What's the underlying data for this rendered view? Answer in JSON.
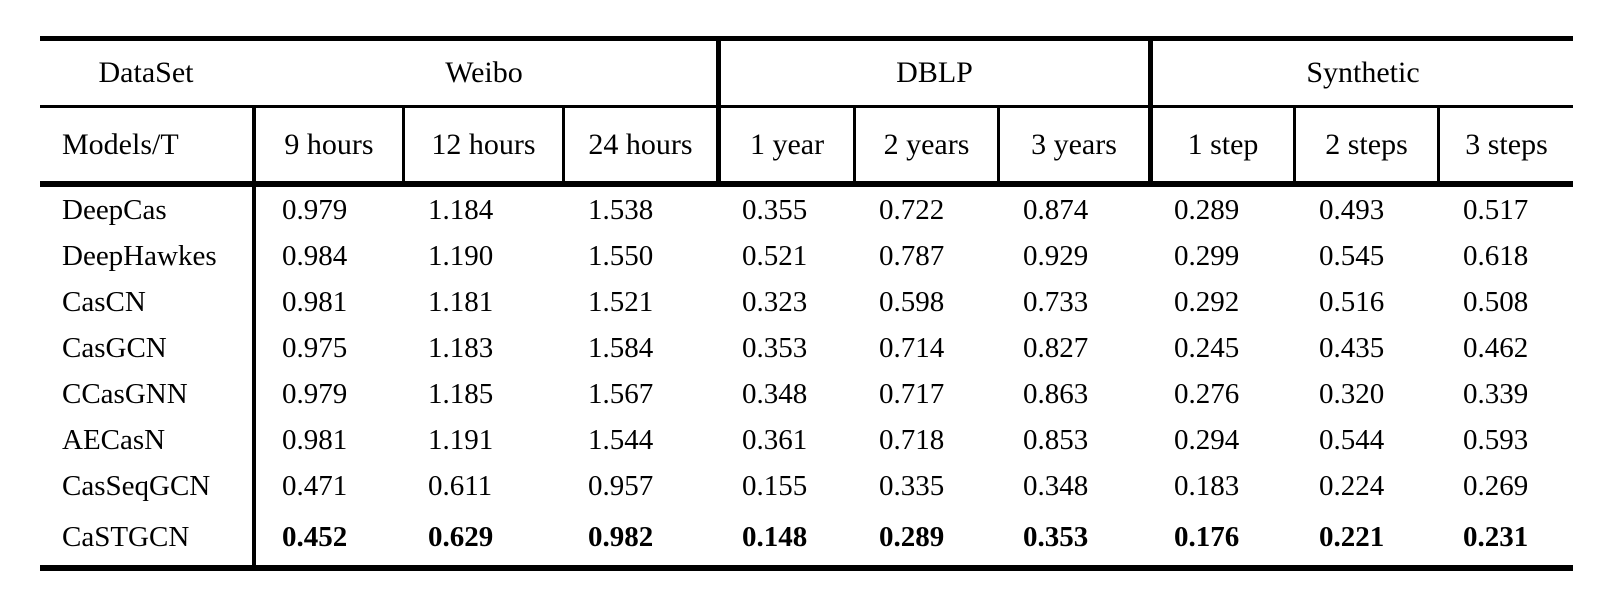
{
  "page": {
    "background": "#ffffff",
    "ink_color": "#000000"
  },
  "table": {
    "header_row1": [
      {
        "label": "DataSet",
        "span": 1
      },
      {
        "label": "Weibo",
        "span": 3
      },
      {
        "label": "DBLP",
        "span": 3
      },
      {
        "label": "Synthetic",
        "span": 3
      }
    ],
    "header_row2": [
      "Models/T",
      "9 hours",
      "12 hours",
      "24 hours",
      "1 year",
      "2 years",
      "3 years",
      "1 step",
      "2 steps",
      "3 steps"
    ],
    "rows": [
      {
        "model": "DeepCas",
        "values": [
          "0.979",
          "1.184",
          "1.538",
          "0.355",
          "0.722",
          "0.874",
          "0.289",
          "0.493",
          "0.517"
        ],
        "bold": false
      },
      {
        "model": "DeepHawkes",
        "values": [
          "0.984",
          "1.190",
          "1.550",
          "0.521",
          "0.787",
          "0.929",
          "0.299",
          "0.545",
          "0.618"
        ],
        "bold": false
      },
      {
        "model": "CasCN",
        "values": [
          "0.981",
          "1.181",
          "1.521",
          "0.323",
          "0.598",
          "0.733",
          "0.292",
          "0.516",
          "0.508"
        ],
        "bold": false
      },
      {
        "model": "CasGCN",
        "values": [
          "0.975",
          "1.183",
          "1.584",
          "0.353",
          "0.714",
          "0.827",
          "0.245",
          "0.435",
          "0.462"
        ],
        "bold": false
      },
      {
        "model": "CCasGNN",
        "values": [
          "0.979",
          "1.185",
          "1.567",
          "0.348",
          "0.717",
          "0.863",
          "0.276",
          "0.320",
          "0.339"
        ],
        "bold": false
      },
      {
        "model": "AECasN",
        "values": [
          "0.981",
          "1.191",
          "1.544",
          "0.361",
          "0.718",
          "0.853",
          "0.294",
          "0.544",
          "0.593"
        ],
        "bold": false
      },
      {
        "model": "CasSeqGCN",
        "values": [
          "0.471",
          "0.611",
          "0.957",
          "0.155",
          "0.335",
          "0.348",
          "0.183",
          "0.224",
          "0.269"
        ],
        "bold": false
      },
      {
        "model": "CaSTGCN",
        "values": [
          "0.452",
          "0.629",
          "0.982",
          "0.148",
          "0.289",
          "0.353",
          "0.176",
          "0.221",
          "0.231"
        ],
        "bold": true
      }
    ]
  },
  "chart_data": {
    "type": "table",
    "column_groups": [
      {
        "label": "DataSet",
        "columns": [
          "Models/T"
        ]
      },
      {
        "label": "Weibo",
        "columns": [
          "9 hours",
          "12 hours",
          "24 hours"
        ]
      },
      {
        "label": "DBLP",
        "columns": [
          "1 year",
          "2 years",
          "3 years"
        ]
      },
      {
        "label": "Synthetic",
        "columns": [
          "1 step",
          "2 steps",
          "3 steps"
        ]
      }
    ],
    "rows": [
      [
        "DeepCas",
        0.979,
        1.184,
        1.538,
        0.355,
        0.722,
        0.874,
        0.289,
        0.493,
        0.517
      ],
      [
        "DeepHawkes",
        0.984,
        1.19,
        1.55,
        0.521,
        0.787,
        0.929,
        0.299,
        0.545,
        0.618
      ],
      [
        "CasCN",
        0.981,
        1.181,
        1.521,
        0.323,
        0.598,
        0.733,
        0.292,
        0.516,
        0.508
      ],
      [
        "CasGCN",
        0.975,
        1.183,
        1.584,
        0.353,
        0.714,
        0.827,
        0.245,
        0.435,
        0.462
      ],
      [
        "CCasGNN",
        0.979,
        1.185,
        1.567,
        0.348,
        0.717,
        0.863,
        0.276,
        0.32,
        0.339
      ],
      [
        "AECasN",
        0.981,
        1.191,
        1.544,
        0.361,
        0.718,
        0.853,
        0.294,
        0.544,
        0.593
      ],
      [
        "CasSeqGCN",
        0.471,
        0.611,
        0.957,
        0.155,
        0.335,
        0.348,
        0.183,
        0.224,
        0.269
      ],
      [
        "CaSTGCN",
        0.452,
        0.629,
        0.982,
        0.148,
        0.289,
        0.353,
        0.176,
        0.221,
        0.231
      ]
    ],
    "bold_row": "CaSTGCN"
  }
}
